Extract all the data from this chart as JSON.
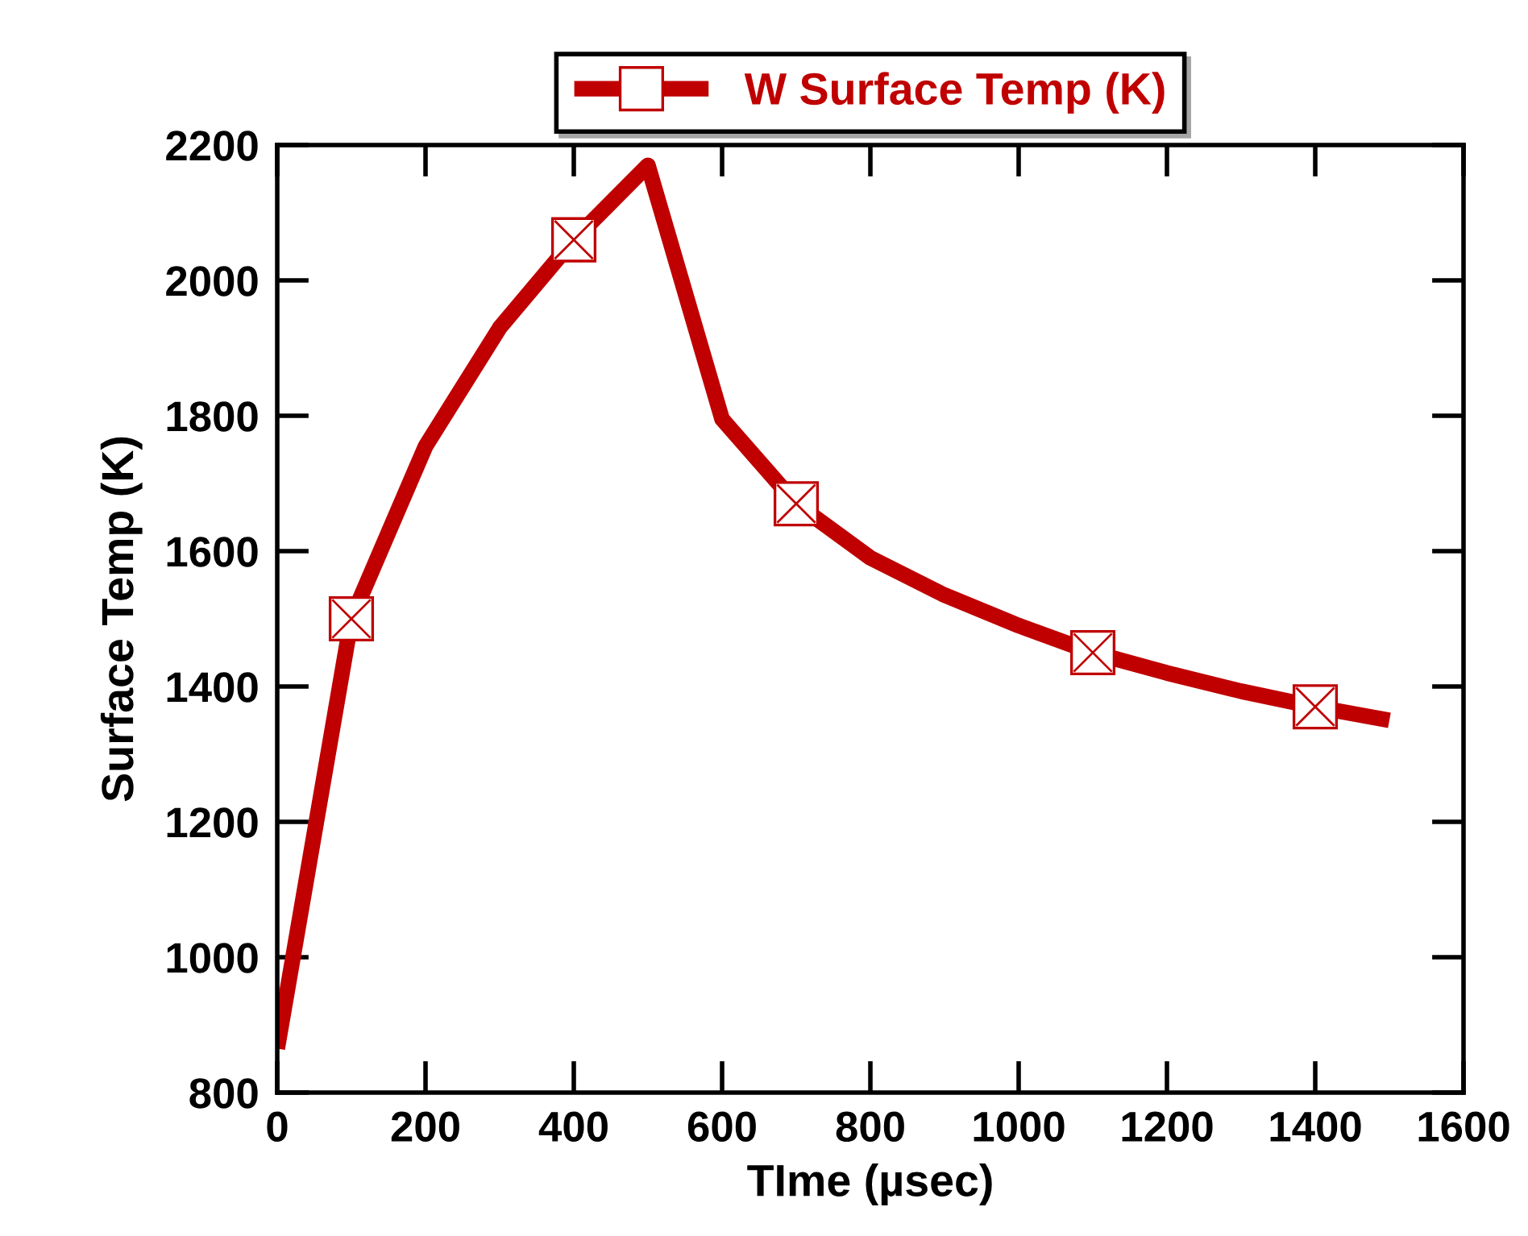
{
  "chart_data": {
    "type": "line",
    "xlabel": "TIme (µsec)",
    "ylabel": "Surface Temp (K)",
    "xlim": [
      0,
      1600
    ],
    "xticks": [
      0,
      200,
      400,
      600,
      800,
      1000,
      1200,
      1400,
      1600
    ],
    "ylim": [
      800,
      2200
    ],
    "yticks": [
      800,
      1000,
      1200,
      1400,
      1600,
      1800,
      2000,
      2200
    ],
    "grid": false,
    "legend": "top",
    "series": [
      {
        "name": "W Surface Temp (K)",
        "color": "#c00000",
        "marker": "none",
        "line_style": "solid",
        "x": [
          0,
          100,
          200,
          300,
          400,
          500,
          600,
          700,
          800,
          900,
          1000,
          1100,
          1200,
          1300,
          1400,
          1500
        ],
        "values": [
          865,
          1500,
          1755,
          1930,
          2060,
          2170,
          1795,
          1670,
          1590,
          1535,
          1490,
          1450,
          1420,
          1393,
          1370,
          1350
        ]
      },
      {
        "type": "scatter",
        "color": "#c00000",
        "marker": "square",
        "x": [
          100,
          400,
          700,
          1100,
          1400
        ],
        "values": [
          1500,
          2060,
          1670,
          1450,
          1370
        ]
      }
    ]
  }
}
